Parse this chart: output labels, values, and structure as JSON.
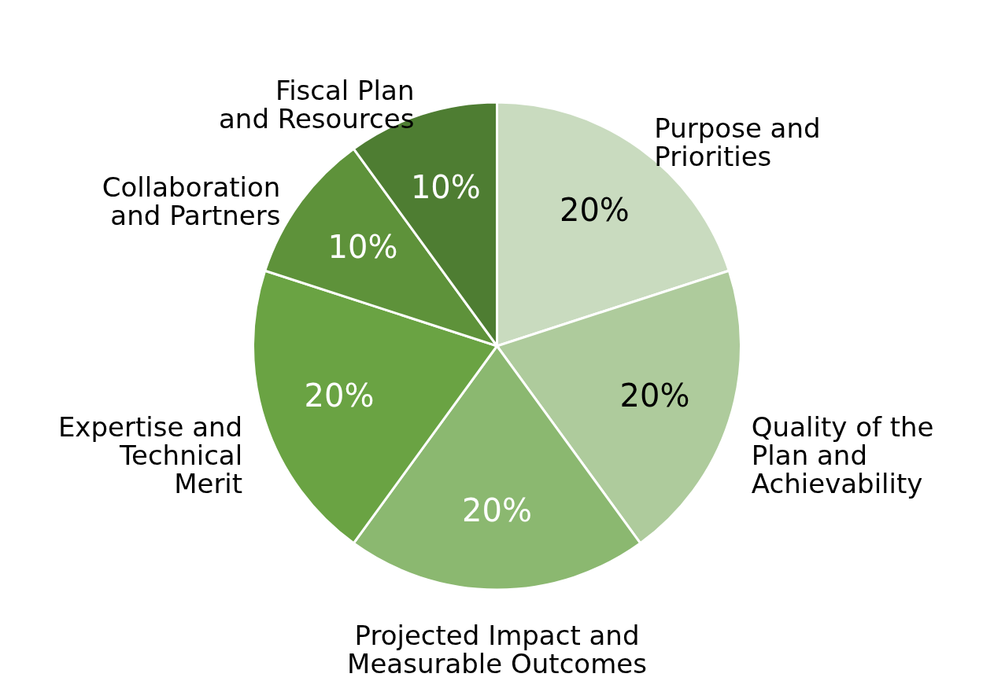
{
  "chart_data": {
    "type": "pie",
    "categories": [
      "Purpose and Priorities",
      "Quality of the Plan and Achievability",
      "Projected Impact and Measurable Outcomes",
      "Expertise and Technical Merit",
      "Collaboration and Partners",
      "Fiscal Plan and Resources"
    ],
    "values": [
      20,
      20,
      20,
      20,
      10,
      10
    ],
    "value_labels": [
      "20%",
      "20%",
      "20%",
      "20%",
      "10%",
      "10%"
    ],
    "colors": [
      "#c9dbbf",
      "#aecb9c",
      "#8bb870",
      "#6aa343",
      "#5e923a",
      "#4e7d32"
    ]
  }
}
